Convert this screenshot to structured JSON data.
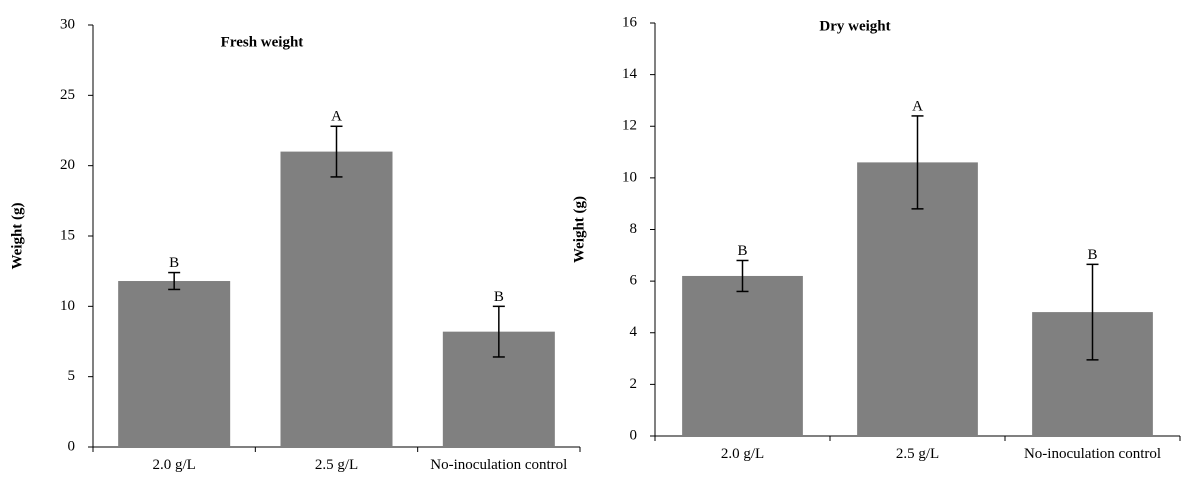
{
  "chart_data": [
    {
      "type": "bar",
      "title": "Fresh weight",
      "y_label": "Weight (g)",
      "categories": [
        "2.0 g/L",
        "2.5 g/L",
        "No-inoculation control"
      ],
      "values": [
        11.8,
        21.0,
        8.2
      ],
      "errors": [
        0.6,
        1.8,
        1.8
      ],
      "letters": [
        "B",
        "A",
        "B"
      ],
      "color": "#808080",
      "ylim": [
        0,
        30
      ],
      "yticks": [
        0,
        5,
        10,
        15,
        20,
        25,
        30
      ],
      "grid": false
    },
    {
      "type": "bar",
      "title": "Dry weight",
      "y_label": "Weight (g)",
      "categories": [
        "2.0 g/L",
        "2.5 g/L",
        "No-inoculation control"
      ],
      "values": [
        6.2,
        10.6,
        4.8
      ],
      "errors": [
        0.6,
        1.8,
        1.85
      ],
      "letters": [
        "B",
        "A",
        "B"
      ],
      "color": "#808080",
      "ylim": [
        0,
        16
      ],
      "yticks": [
        0,
        2,
        4,
        6,
        8,
        10,
        12,
        14,
        16
      ],
      "grid": false
    }
  ]
}
